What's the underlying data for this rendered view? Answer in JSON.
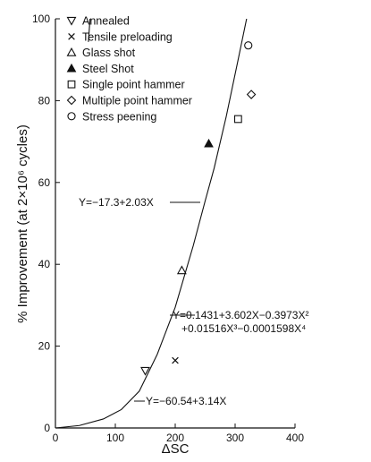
{
  "chart_data": {
    "type": "scatter",
    "xlabel": "ΔSC",
    "ylabel": "% Improvement (at 2×10⁶ cycles)",
    "xlim": [
      0,
      400
    ],
    "ylim": [
      0,
      100
    ],
    "xticks": [
      "0",
      "100",
      "200",
      "300",
      "400"
    ],
    "yticks": [
      "0",
      "20",
      "40",
      "60",
      "80",
      "100"
    ],
    "legend_position": "top-left",
    "series": [
      {
        "name": "Annealed",
        "marker": "triangle-down-open",
        "points": [
          [
            150,
            14
          ]
        ]
      },
      {
        "name": "Tensile preloading",
        "marker": "x",
        "points": [
          [
            200,
            16.5
          ]
        ]
      },
      {
        "name": "Glass shot",
        "marker": "triangle-up-open",
        "points": [
          [
            211,
            38.5
          ]
        ]
      },
      {
        "name": "Steel Shot",
        "marker": "triangle-up-filled",
        "points": [
          [
            256,
            69.5
          ]
        ]
      },
      {
        "name": "Single point hammer",
        "marker": "square-open",
        "points": [
          [
            305,
            75.5
          ]
        ]
      },
      {
        "name": "Multiple point hammer",
        "marker": "diamond-open",
        "points": [
          [
            327,
            81.5
          ]
        ]
      },
      {
        "name": "Stress peening",
        "marker": "circle-open",
        "points": [
          [
            322,
            93.5
          ]
        ]
      }
    ],
    "fits": [
      {
        "label": "Y=−17.3+2.03X",
        "kind": "linear",
        "a": -17.3,
        "b": 2.03,
        "x_range": [
          55,
          400
        ]
      },
      {
        "label": "Y=−60.54+3.14X",
        "kind": "linear",
        "a": -60.54,
        "b": 3.14,
        "x_range": [
          138,
          350
        ]
      },
      {
        "label_line1": "Y=0.1431+3.602X−0.3973X²",
        "label_line2": "+0.01516X³−0.0001598X⁴",
        "kind": "polynomial",
        "x_range": [
          0,
          340
        ]
      }
    ]
  }
}
